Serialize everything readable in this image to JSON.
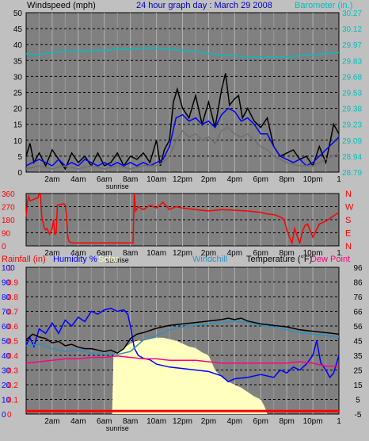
{
  "header": {
    "windspeed_label": "Windspeed (mph)",
    "title": "24 hour graph day : March 29 2008",
    "barometer_label": "Barometer (in.)"
  },
  "x_axis": {
    "tick_labels": [
      "2am",
      "4am",
      "6am",
      "8am",
      "10am",
      "12pm",
      "2pm",
      "4pm",
      "6pm",
      "8pm",
      "10pm"
    ],
    "tick_hours": [
      2,
      4,
      6,
      8,
      10,
      12,
      14,
      16,
      18,
      20,
      22
    ],
    "end_label": "1",
    "sunrise_label": "sunrise"
  },
  "colors": {
    "background": "#c0c0c0",
    "wind": "#000000",
    "gust": "#0000ff",
    "wind_avg": "#707070",
    "barometer": "#00c0c0",
    "direction": "#ff0000",
    "rainfall": "#ff0000",
    "humidity": "#0000ff",
    "solar": "#ffffc0",
    "windchill": "#3090c0",
    "temperature": "#000000",
    "dew_point": "#ff0080"
  },
  "legend": {
    "rainfall": "Rainfall (in)",
    "humidity": "Humidity %",
    "solar": "Solar",
    "windchill": "Windchill",
    "temperature": "Temperature (°F)",
    "dew_point": "Dew Point"
  },
  "chart_data": [
    {
      "type": "line",
      "x_unit": "hour of day",
      "xlim": [
        0,
        24
      ],
      "ylabel": "Windspeed (mph)",
      "ylim": [
        0,
        50
      ],
      "yticks": [
        0,
        5,
        10,
        15,
        20,
        25,
        30,
        35,
        40,
        45,
        50
      ],
      "right_ylabel": "Barometer (in.)",
      "right_yticks": [
        "28.79",
        "28.94",
        "29.09",
        "29.23",
        "29.38",
        "29.53",
        "29.68",
        "29.83",
        "29.97",
        "30.12",
        "30.27"
      ],
      "grid": true,
      "series": [
        {
          "name": "Wind Speed",
          "color": "#000000",
          "x": [
            0,
            0.3,
            0.6,
            1,
            1.5,
            2,
            2.5,
            3,
            3.5,
            4,
            4.5,
            5,
            5.5,
            6,
            6.5,
            7,
            7.5,
            8,
            8.5,
            9,
            9.5,
            10,
            10.3,
            10.6,
            11,
            11.3,
            11.6,
            12,
            12.5,
            13,
            13.5,
            14,
            14.5,
            15,
            15.3,
            15.6,
            16,
            16.3,
            16.6,
            17,
            17.5,
            18,
            18.5,
            19,
            19.5,
            20,
            20.5,
            21,
            21.5,
            22,
            22.5,
            23,
            23.3,
            23.6,
            24
          ],
          "values": [
            5,
            9,
            3,
            6,
            2,
            7,
            4,
            1,
            6,
            3,
            5,
            2,
            6,
            2,
            3,
            6,
            2,
            5,
            4,
            6,
            3,
            10,
            2,
            7,
            10,
            22,
            26,
            20,
            17,
            24,
            15,
            22,
            14,
            26,
            31,
            21,
            23,
            24,
            17,
            20,
            16,
            14,
            17,
            8,
            5,
            6,
            7,
            4,
            5,
            2,
            8,
            3,
            9,
            15,
            12
          ]
        },
        {
          "name": "Gust",
          "color": "#0000ff",
          "x": [
            0,
            0.5,
            1,
            1.5,
            2,
            2.5,
            3,
            3.5,
            4,
            4.5,
            5,
            5.5,
            6,
            6.5,
            7,
            7.5,
            8,
            8.5,
            9,
            9.5,
            10,
            10.5,
            11,
            11.5,
            12,
            12.5,
            13,
            13.5,
            14,
            14.5,
            15,
            15.5,
            16,
            16.5,
            17,
            17.5,
            18,
            18.5,
            19,
            19.5,
            20,
            20.5,
            21,
            21.5,
            22,
            22.5,
            23,
            23.5,
            24
          ],
          "values": [
            2,
            3,
            4,
            3,
            2,
            4,
            2,
            3,
            2,
            4,
            3,
            2,
            3,
            2,
            3,
            2,
            3,
            2,
            3,
            2,
            3,
            4,
            8,
            17,
            18,
            16,
            17,
            15,
            16,
            14,
            18,
            20,
            19,
            16,
            17,
            15,
            12,
            12,
            8,
            5,
            4,
            3,
            4,
            2,
            3,
            5,
            7,
            9,
            11
          ]
        },
        {
          "name": "Average",
          "color": "#707070",
          "x": [
            0,
            1,
            2,
            3,
            4,
            5,
            6,
            7,
            8,
            9,
            10,
            10.5,
            11,
            11.5,
            12,
            12.5,
            13,
            13.5,
            14,
            14.5,
            15,
            15.5,
            16,
            16.5,
            17,
            17.5,
            18,
            18.5,
            19,
            20,
            21,
            22,
            23,
            24
          ],
          "values": [
            1,
            2,
            1,
            2,
            1,
            2,
            1,
            2,
            1,
            2,
            2,
            3,
            5,
            10,
            13,
            11,
            12,
            10,
            11,
            9,
            13,
            14,
            12,
            11,
            12,
            10,
            8,
            7,
            5,
            3,
            2,
            2,
            4,
            6
          ]
        },
        {
          "name": "Barometer",
          "axis": "right",
          "color": "#00c0c0",
          "x": [
            0,
            1,
            2,
            3,
            4,
            5,
            6,
            7,
            8,
            9,
            10,
            11,
            12,
            13,
            14,
            15,
            16,
            17,
            18,
            19,
            20,
            21,
            22,
            23,
            24
          ],
          "values": [
            29.89,
            29.88,
            29.9,
            29.91,
            29.91,
            29.92,
            29.92,
            29.93,
            29.93,
            29.94,
            29.94,
            29.93,
            29.92,
            29.91,
            29.89,
            29.88,
            29.87,
            29.86,
            29.86,
            29.86,
            29.86,
            29.87,
            29.88,
            29.89,
            29.9
          ]
        }
      ]
    },
    {
      "type": "line",
      "x_unit": "hour of day",
      "xlim": [
        0,
        24
      ],
      "ylabel": "",
      "ylim": [
        0,
        360
      ],
      "yticks": [
        0,
        90,
        180,
        270,
        360
      ],
      "right_labels": [
        "N",
        "W",
        "S",
        "E",
        "N"
      ],
      "grid": true,
      "series": [
        {
          "name": "Wind Direction",
          "color": "#ff0000",
          "x": [
            0,
            0.1,
            0.2,
            0.3,
            0.9,
            1,
            1.1,
            1.2,
            1.4,
            1.5,
            1.6,
            1.8,
            2,
            2.1,
            2.2,
            2.3,
            2.4,
            2.9,
            3,
            3.1,
            3.2,
            3.3,
            3.5,
            4,
            5,
            6,
            7,
            8,
            8.2,
            8.3,
            8.4,
            8.6,
            9,
            9.5,
            10,
            10.5,
            11,
            11.5,
            12,
            13,
            14,
            15,
            16,
            17,
            18,
            18.5,
            19,
            19.5,
            19.8,
            20,
            20.2,
            20.4,
            20.6,
            21,
            21.2,
            21.4,
            21.6,
            22,
            22.5,
            23,
            23.5,
            24
          ],
          "values": [
            200,
            300,
            340,
            310,
            330,
            360,
            350,
            200,
            120,
            110,
            120,
            80,
            120,
            180,
            80,
            90,
            280,
            290,
            280,
            200,
            60,
            30,
            20,
            20,
            20,
            20,
            20,
            20,
            20,
            360,
            240,
            270,
            250,
            280,
            260,
            300,
            250,
            270,
            260,
            250,
            240,
            250,
            245,
            240,
            230,
            220,
            215,
            200,
            180,
            110,
            60,
            20,
            120,
            20,
            100,
            140,
            150,
            60,
            150,
            170,
            200,
            230
          ]
        }
      ]
    },
    {
      "type": "line",
      "x_unit": "hour of day",
      "xlim": [
        0,
        24
      ],
      "ylim": [
        -5,
        96
      ],
      "left_ticks": [
        {
          "rain": "0",
          "hum": "0"
        },
        {
          "rain": "0.1",
          "hum": "10"
        },
        {
          "rain": "0.2",
          "hum": "20"
        },
        {
          "rain": "0.3",
          "hum": "30"
        },
        {
          "rain": "0.4",
          "hum": "40"
        },
        {
          "rain": "0.5",
          "hum": "50"
        },
        {
          "rain": "0.6",
          "hum": "60"
        },
        {
          "rain": "0.7",
          "hum": "70"
        },
        {
          "rain": "0.8",
          "hum": "80"
        },
        {
          "rain": "0.9",
          "hum": "90"
        },
        {
          "rain": "1",
          "hum": "100"
        }
      ],
      "right_yticks": [
        "-5",
        "5",
        "15",
        "25",
        "35",
        "45",
        "56",
        "66",
        "76",
        "86",
        "96"
      ],
      "grid": true,
      "series": [
        {
          "name": "Humidity %",
          "axis": "humidity",
          "color": "#0000ff",
          "x": [
            0,
            0.3,
            0.6,
            1,
            1.5,
            2,
            2.5,
            3,
            3.5,
            4,
            4.5,
            5,
            5.5,
            6,
            6.5,
            7,
            7.5,
            7.8,
            8,
            8.3,
            8.6,
            9,
            9.5,
            10,
            11,
            12,
            13,
            14,
            15,
            15.5,
            16,
            17,
            18,
            19,
            19.5,
            20,
            20.5,
            21,
            21.5,
            22,
            22.3,
            22.6,
            23,
            23.3,
            23.6,
            24
          ],
          "values": [
            47,
            52,
            46,
            58,
            55,
            62,
            55,
            64,
            60,
            66,
            63,
            70,
            68,
            71,
            72,
            70,
            71,
            68,
            60,
            45,
            40,
            38,
            37,
            34,
            32,
            31,
            30,
            29,
            26,
            22,
            24,
            25,
            27,
            25,
            30,
            28,
            32,
            30,
            34,
            40,
            50,
            35,
            30,
            25,
            28,
            40
          ]
        },
        {
          "name": "Solar",
          "axis": "solar",
          "color": "#ffffc0",
          "x": [
            0,
            6.6,
            6.7,
            7,
            7.5,
            8,
            8.5,
            9,
            9.5,
            10,
            10.5,
            11,
            11.5,
            12,
            12.5,
            13,
            13.5,
            14,
            14.5,
            15,
            15.5,
            16,
            16.5,
            17,
            17.5,
            18,
            18.3,
            18.5,
            24
          ],
          "values": [
            0,
            0,
            40,
            42,
            45,
            48,
            50,
            50,
            51,
            52,
            52,
            51,
            50,
            48,
            46,
            45,
            42,
            40,
            30,
            25,
            22,
            20,
            18,
            15,
            12,
            10,
            5,
            0,
            0
          ]
        },
        {
          "name": "Windchill",
          "axis": "temperature",
          "color": "#3090c0",
          "x": [
            0,
            1,
            2,
            3,
            4,
            5,
            6,
            7,
            8,
            9,
            10,
            11,
            12,
            13,
            14,
            15,
            16,
            17,
            18,
            19,
            20,
            21,
            22,
            23,
            24
          ],
          "values": [
            42,
            43,
            40,
            38,
            39,
            37,
            36,
            36,
            38,
            46,
            49,
            53,
            55,
            56,
            57,
            58,
            59,
            58,
            56,
            55,
            53,
            51,
            50,
            49,
            48
          ]
        },
        {
          "name": "Temperature (°F)",
          "axis": "temperature",
          "color": "#000000",
          "x": [
            0,
            0.5,
            1,
            1.5,
            2,
            2.5,
            3,
            3.5,
            4,
            4.5,
            5,
            5.5,
            6,
            6.5,
            7,
            7.5,
            8,
            8.5,
            9,
            10,
            11,
            12,
            13,
            14,
            15,
            15.5,
            16,
            16.5,
            17,
            18,
            19,
            20,
            21,
            22,
            23,
            24
          ],
          "values": [
            46,
            50,
            48,
            47,
            44,
            45,
            42,
            43,
            41,
            40,
            40,
            39,
            38,
            39,
            37,
            40,
            47,
            50,
            51,
            54,
            56,
            57,
            58,
            59,
            60,
            61,
            60,
            61,
            59,
            57,
            56,
            55,
            53,
            52,
            51,
            50
          ]
        },
        {
          "name": "Dew Point",
          "axis": "temperature",
          "color": "#ff0080",
          "x": [
            0,
            1,
            2,
            3,
            4,
            5,
            6,
            7,
            8,
            9,
            10,
            11,
            12,
            13,
            14,
            15,
            16,
            17,
            18,
            19,
            20,
            21,
            22,
            23,
            24
          ],
          "values": [
            30,
            31,
            32,
            33,
            33,
            34,
            34,
            35,
            34,
            33,
            33,
            32,
            32,
            32,
            31,
            30,
            30,
            30,
            30,
            30,
            30,
            31,
            30,
            28,
            28
          ]
        },
        {
          "name": "Rainfall (in)",
          "axis": "rainfall",
          "color": "#ff0000",
          "x": [
            0,
            24
          ],
          "values": [
            0.02,
            0.02
          ]
        }
      ]
    }
  ]
}
